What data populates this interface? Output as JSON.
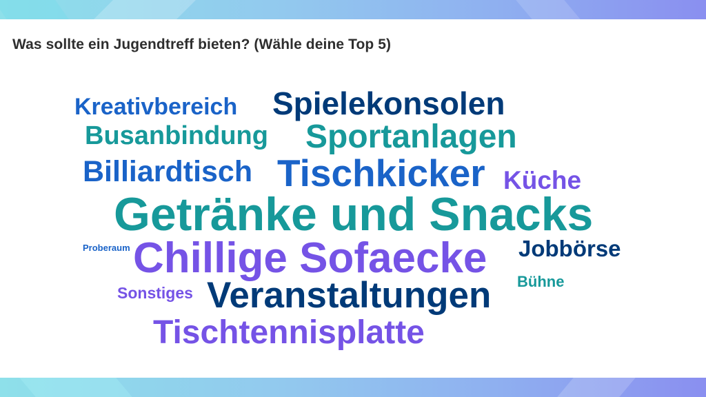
{
  "question": "Was sollte ein Jugendtreff bieten? (Wähle deine Top 5)",
  "colors": {
    "navy": "#003a78",
    "blue": "#1a63c8",
    "teal": "#17999a",
    "purple": "#7553e6",
    "text": "#2e2e2e"
  },
  "words": [
    {
      "text": "Kreativbereich",
      "color": "#1a63c8"
    },
    {
      "text": "Spielekonsolen",
      "color": "#003a78"
    },
    {
      "text": "Busanbindung",
      "color": "#17999a"
    },
    {
      "text": "Sportanlagen",
      "color": "#17999a"
    },
    {
      "text": "Billiardtisch",
      "color": "#1a63c8"
    },
    {
      "text": "Tischkicker",
      "color": "#1a63c8"
    },
    {
      "text": "Küche",
      "color": "#7553e6"
    },
    {
      "text": "Getränke und Snacks",
      "color": "#17999a"
    },
    {
      "text": "Proberaum",
      "color": "#1a63c8"
    },
    {
      "text": "Chillige Sofaecke",
      "color": "#7553e6"
    },
    {
      "text": "Jobbörse",
      "color": "#003a78"
    },
    {
      "text": "Bühne",
      "color": "#17999a"
    },
    {
      "text": "Sonstiges",
      "color": "#7553e6"
    },
    {
      "text": "Veranstaltungen",
      "color": "#003a78"
    },
    {
      "text": "Tischtennisplatte",
      "color": "#7553e6"
    }
  ]
}
